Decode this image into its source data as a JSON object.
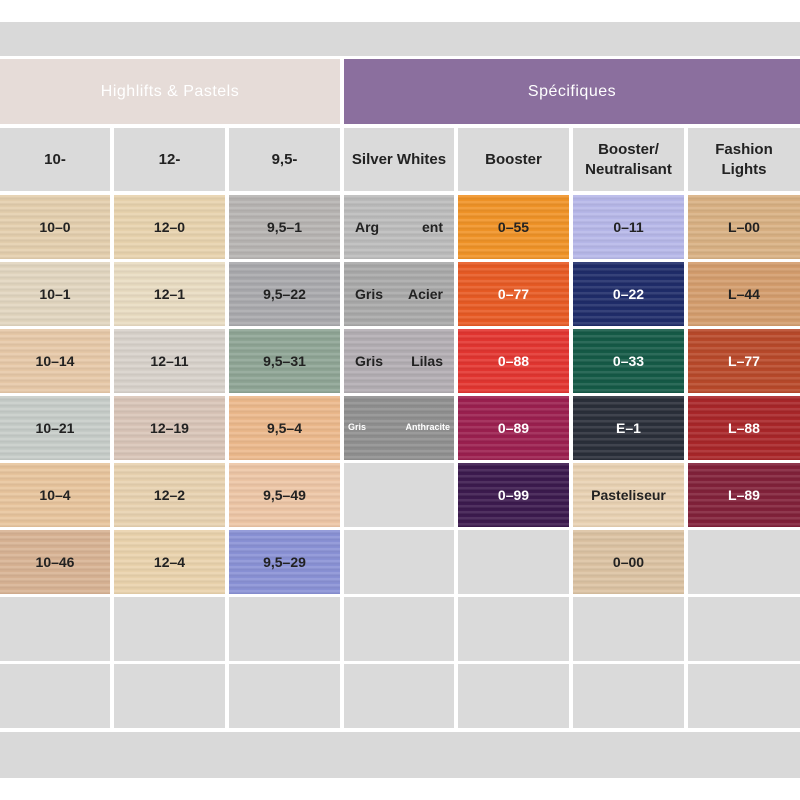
{
  "groups": {
    "highlifts": {
      "label": "Highlifts & Pastels",
      "color": "#e6dcd8"
    },
    "specifiques": {
      "label": "Spécifiques",
      "color": "#8b6f9e"
    }
  },
  "columns": [
    {
      "label": "10-"
    },
    {
      "label": "12-"
    },
    {
      "label": "9,5-"
    },
    {
      "label": "Silver Whites"
    },
    {
      "label": "Booster"
    },
    {
      "label": "Booster/ Neutralisant"
    },
    {
      "label": "Fashion Lights"
    }
  ],
  "swatches": [
    [
      {
        "label": "10–0",
        "color": "#e4cfae"
      },
      {
        "label": "10–1",
        "color": "#e2d6c0"
      },
      {
        "label": "10–14",
        "color": "#e7c9a8"
      },
      {
        "label": "10–21",
        "color": "#c7cdc9"
      },
      {
        "label": "10–4",
        "color": "#e8c59d"
      },
      {
        "label": "10–46",
        "color": "#d8b394"
      }
    ],
    [
      {
        "label": "12–0",
        "color": "#e8d3ae"
      },
      {
        "label": "12–1",
        "color": "#e9dcc2"
      },
      {
        "label": "12–11",
        "color": "#d8d2cb"
      },
      {
        "label": "12–19",
        "color": "#d9c5b8"
      },
      {
        "label": "12–2",
        "color": "#e8d2b0"
      },
      {
        "label": "12–4",
        "color": "#ead3ad"
      }
    ],
    [
      {
        "label": "9,5–1",
        "color": "#b7b4b2"
      },
      {
        "label": "9,5–22",
        "color": "#a9a9ad"
      },
      {
        "label": "9,5–31",
        "color": "#8fa595"
      },
      {
        "label": "9,5–4",
        "color": "#ecb98c"
      },
      {
        "label": "9,5–49",
        "color": "#edc6a6"
      },
      {
        "label": "9,5–29",
        "color": "#8a92d6"
      }
    ],
    [
      {
        "label": "Arg ent",
        "color": "#bcbcbc",
        "parts": [
          "Arg",
          "ent"
        ]
      },
      {
        "label": "Gris Acier",
        "color": "#a9a9a9",
        "parts": [
          "Gris",
          "Acier"
        ]
      },
      {
        "label": "Gris Lilas",
        "color": "#b3aeb3",
        "parts": [
          "Gris",
          "Lilas"
        ]
      },
      {
        "label": "Gris Anthracite",
        "color": "#909090",
        "parts": [
          "Gris",
          "Anthracite"
        ]
      }
    ],
    [
      {
        "label": "0–55",
        "color": "#f09327"
      },
      {
        "label": "0–77",
        "color": "#e85a24"
      },
      {
        "label": "0–88",
        "color": "#e33530"
      },
      {
        "label": "0–89",
        "color": "#9c1f4f"
      },
      {
        "label": "0–99",
        "color": "#3c1a4e"
      }
    ],
    [
      {
        "label": "0–11",
        "color": "#b7b8e9"
      },
      {
        "label": "0–22",
        "color": "#1f2c6a"
      },
      {
        "label": "0–33",
        "color": "#155a47"
      },
      {
        "label": "E–1",
        "color": "#2a2f3a"
      },
      {
        "label": "Pasteliseur",
        "color": "#e9d2b3"
      },
      {
        "label": "0–00",
        "color": "#dcc3a3"
      }
    ],
    [
      {
        "label": "L–00",
        "color": "#d9b183"
      },
      {
        "label": "L–44",
        "color": "#d49d6d"
      },
      {
        "label": "L–77",
        "color": "#b9492a"
      },
      {
        "label": "L–88",
        "color": "#a92629"
      },
      {
        "label": "L–89",
        "color": "#82213a"
      }
    ]
  ]
}
